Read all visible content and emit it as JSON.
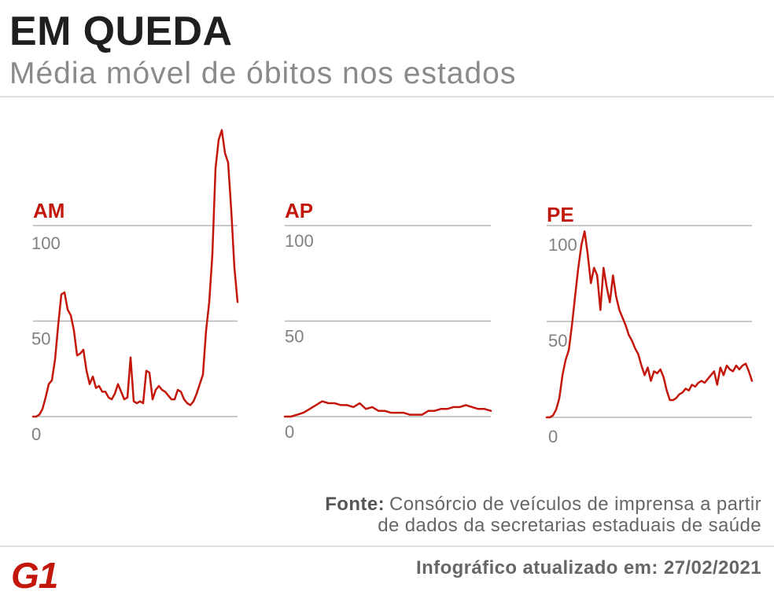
{
  "header": {
    "title": "EM QUEDA",
    "subtitle": "Média móvel de óbitos nos estados"
  },
  "colors": {
    "accent": "#c4170c",
    "grid": "#b5b5b5",
    "title": "#1f1f1f",
    "subtitle": "#8a8a8a",
    "text": "#666666"
  },
  "chart_data": [
    {
      "type": "line",
      "title": "AM",
      "yticks": [
        0,
        50,
        100
      ],
      "grid": true,
      "values": [
        0,
        0,
        1,
        4,
        10,
        17,
        19,
        30,
        48,
        64,
        65,
        56,
        53,
        45,
        32,
        33,
        35,
        24,
        17,
        21,
        15,
        16,
        13,
        13,
        10,
        9,
        12,
        17,
        13,
        9,
        10,
        31,
        8,
        7,
        8,
        7,
        24,
        23,
        9,
        14,
        16,
        14,
        13,
        11,
        9,
        9,
        14,
        13,
        9,
        7,
        6,
        8,
        12,
        17,
        22,
        45,
        60,
        85,
        130,
        145,
        150,
        138,
        133,
        108,
        78,
        60
      ]
    },
    {
      "type": "line",
      "title": "AP",
      "yticks": [
        0,
        50,
        100
      ],
      "grid": true,
      "values": [
        0,
        0,
        1,
        2,
        4,
        6,
        8,
        7,
        7,
        6,
        6,
        5,
        7,
        4,
        5,
        3,
        3,
        2,
        2,
        2,
        1,
        1,
        1,
        3,
        3,
        4,
        4,
        5,
        5,
        6,
        5,
        4,
        4,
        3
      ]
    },
    {
      "type": "line",
      "title": "PE",
      "yticks": [
        0,
        50,
        100
      ],
      "grid": true,
      "values": [
        0,
        0,
        1,
        4,
        10,
        22,
        30,
        35,
        48,
        63,
        78,
        90,
        97,
        85,
        70,
        78,
        74,
        56,
        78,
        68,
        60,
        74,
        63,
        56,
        52,
        48,
        43,
        40,
        36,
        33,
        27,
        22,
        26,
        19,
        24,
        23,
        25,
        21,
        14,
        9,
        9,
        10,
        12,
        13,
        15,
        14,
        17,
        16,
        18,
        19,
        18,
        20,
        22,
        24,
        17,
        26,
        22,
        27,
        25,
        24,
        27,
        25,
        27,
        28,
        24,
        19
      ]
    }
  ],
  "footer": {
    "source_label": "Fonte:",
    "source_text_1": "Consórcio de veículos de imprensa a partir",
    "source_text_2": "de dados da secretarias estaduais de saúde",
    "logo": "G1",
    "updated": "Infográfico atualizado em: 27/02/2021"
  }
}
